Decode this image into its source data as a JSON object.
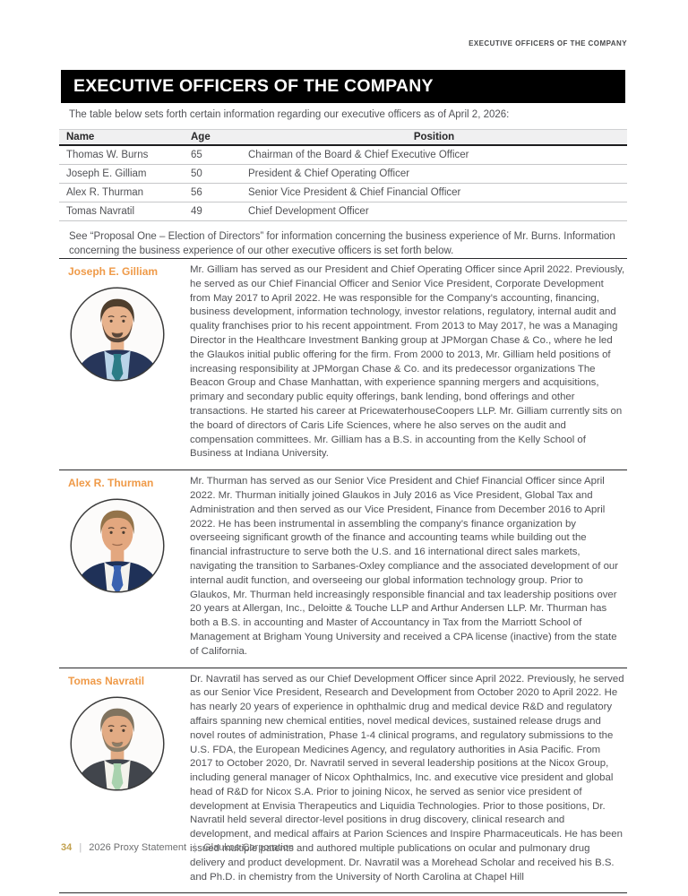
{
  "page": {
    "running_header": "EXECUTIVE OFFICERS OF THE COMPANY",
    "banner_title": "EXECUTIVE OFFICERS OF THE COMPANY",
    "intro": "The table below sets forth certain information regarding our executive officers as of April 2, 2026:",
    "note": "See “Proposal One – Election of Directors” for information concerning the business experience of Mr. Burns. Information concerning the business experience of our other executive officers is set forth below."
  },
  "officers_table": {
    "columns": [
      "Name",
      "Age",
      "Position"
    ],
    "rows": [
      [
        "Thomas W. Burns",
        "65",
        "Chairman of the Board & Chief Executive Officer"
      ],
      [
        "Joseph E. Gilliam",
        "50",
        "President & Chief Operating Officer"
      ],
      [
        "Alex R. Thurman",
        "56",
        "Senior Vice President & Chief Financial Officer"
      ],
      [
        "Tomas Navratil",
        "49",
        "Chief Development Officer"
      ]
    ]
  },
  "bios": [
    {
      "name": "Joseph E. Gilliam",
      "photo": {
        "label": "headshot-joseph-e-gilliam",
        "hair": "#4e3e2d",
        "beard": "#57463a",
        "suit": "#27365a",
        "shirt": "#b9d4e8",
        "tie": "#2c7c86",
        "skin": "#e7b28c"
      },
      "text": "Mr. Gilliam has served as our President and Chief Operating Officer since April 2022. Previously, he served as our Chief Financial Officer and Senior Vice President, Corporate Development from May 2017 to April 2022. He was responsible for the Company’s accounting, financing, business development, information technology, investor relations, regulatory, internal audit and quality franchises prior to his recent appointment. From 2013 to May 2017, he was a Managing Director in the Healthcare Investment Banking group at JPMorgan Chase & Co., where he led the Glaukos initial public offering for the firm. From 2000 to 2013, Mr. Gilliam held positions of increasing responsibility at JPMorgan Chase & Co. and its predecessor organizations The Beacon Group and Chase Manhattan, with experience spanning mergers and acquisitions, primary and secondary public equity offerings, bank lending, bond offerings and other transactions. He started his career at PricewaterhouseCoopers LLP. Mr. Gilliam currently sits on the board of directors of Caris Life Sciences, where he also serves on the audit and compensation committees. Mr. Gilliam has a B.S. in accounting from the Kelly School of Business at Indiana University."
    },
    {
      "name": "Alex R. Thurman",
      "photo": {
        "label": "headshot-alex-r-thurman",
        "hair": "#93734a",
        "beard": null,
        "suit": "#1f3158",
        "shirt": "#f3f2ee",
        "tie": "#3a62b0",
        "skin": "#e3a77f"
      },
      "text": "Mr. Thurman has served as our Senior Vice President and Chief Financial Officer since April 2022. Mr. Thurman initially joined Glaukos in July 2016 as Vice President, Global Tax and Administration and then served as our Vice President, Finance from December 2016 to April 2022. He has been instrumental in assembling the company’s finance organization by overseeing significant growth of the finance and accounting teams while building out the financial infrastructure to serve both the U.S. and 16 international direct sales markets, navigating the transition to Sarbanes-Oxley compliance and the associated development of our internal audit function, and overseeing our global information technology group. Prior to Glaukos, Mr. Thurman held increasingly responsible financial and tax leadership positions over 20 years at Allergan, Inc., Deloitte & Touche LLP and Arthur Andersen LLP. Mr. Thurman has both a B.S. in accounting and Master of Accountancy in Tax from the Marriott School of Management at Brigham Young University and received a CPA license (inactive) from the state of California."
    },
    {
      "name": "Tomas Navratil",
      "photo": {
        "label": "headshot-tomas-navratil",
        "hair": "#80735f",
        "beard": "#8a7d68",
        "suit": "#41454c",
        "shirt": "#f4f3ec",
        "tie": "#a9d2ae",
        "skin": "#e2ab84"
      },
      "text": "Dr. Navratil has served as our Chief Development Officer since April 2022. Previously, he served as our Senior Vice President, Research and Development from October 2020 to April 2022. He has nearly 20 years of experience in ophthalmic drug and medical device R&D and regulatory affairs spanning new chemical entities, novel medical devices, sustained release drugs and novel routes of administration, Phase 1-4 clinical programs, and regulatory submissions to the U.S. FDA, the European Medicines Agency, and regulatory authorities in Asia Pacific. From 2017 to October 2020, Dr. Navratil served in several leadership positions at the Nicox Group, including general manager of Nicox Ophthalmics, Inc. and executive vice president and global head of R&D for Nicox S.A. Prior to joining Nicox, he served as senior vice president of development at Envisia Therapeutics and Liquidia Technologies. Prior to those positions, Dr. Navratil held several director-level positions in drug discovery, clinical research and development, and medical affairs at Parion Sciences and Inspire Pharmaceuticals. He has been issued multiple patents and authored multiple publications on ocular and pulmonary drug delivery and product development. Dr. Navratil was a Morehead Scholar and received his B.S. and Ph.D. in chemistry from the University of North Carolina at Chapel Hill"
    }
  ],
  "footer": {
    "page_number": "34",
    "divider": "|",
    "doc_title": "2026 Proxy Statement",
    "company": "Glaukos Corporation"
  },
  "colors": {
    "accent_orange": "#ef9a48",
    "footer_gold": "#c2a14f",
    "banner_bg": "#000000",
    "body_text": "#515256"
  }
}
